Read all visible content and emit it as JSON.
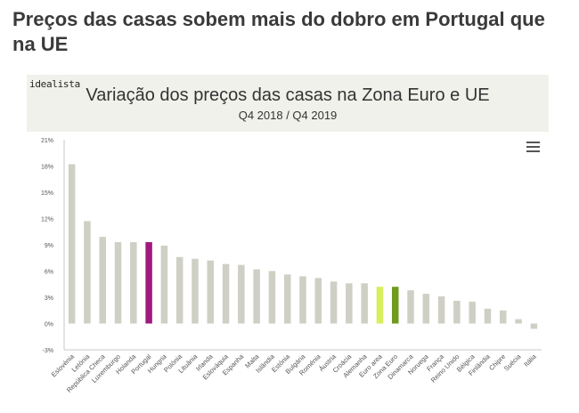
{
  "headline": "Preços das casas sobem mais do dobro em Portugal que na UE",
  "brand": "idealista",
  "colors": {
    "default": "#cfcfc5",
    "portugal": "#a0197f",
    "euro_area": "#d6ef5c",
    "zona_euro": "#6e9a1e"
  },
  "chart_data": {
    "type": "bar",
    "title": "Variação dos preços das casas na Zona Euro e UE",
    "subtitle": "Q4 2018 / Q4 2019",
    "xlabel": "",
    "ylabel": "",
    "ylim": [
      -3,
      21
    ],
    "yticks": [
      "21%",
      "18%",
      "15%",
      "12%",
      "9%",
      "6%",
      "3%",
      "0%",
      "-3%"
    ],
    "grid": false,
    "categories": [
      "Eslovénia",
      "Letónia",
      "República Checa",
      "Luxemburgo",
      "Holanda",
      "Portugal",
      "Hungria",
      "Polónia",
      "Lituânia",
      "Irlanda",
      "Eslováquia",
      "Espanha",
      "Malta",
      "Islândia",
      "Estónia",
      "Bulgária",
      "Roménia",
      "Áustria",
      "Croácia",
      "Alemanha",
      "Euro area",
      "Zona Euro",
      "Dinamarca",
      "Noruega",
      "França",
      "Reino Unido",
      "Bélgica",
      "Finlândia",
      "Chipre",
      "Suécia",
      "Itália"
    ],
    "values": [
      18.2,
      11.7,
      9.9,
      9.3,
      9.3,
      9.3,
      8.9,
      7.6,
      7.4,
      7.2,
      6.8,
      6.7,
      6.2,
      6.0,
      5.6,
      5.4,
      5.2,
      4.8,
      4.6,
      4.6,
      4.2,
      4.2,
      3.8,
      3.4,
      3.1,
      2.6,
      2.5,
      1.7,
      1.5,
      0.5,
      -0.6
    ],
    "highlight": {
      "Portugal": "portugal",
      "Euro area": "euro_area",
      "Zona Euro": "zona_euro"
    }
  }
}
